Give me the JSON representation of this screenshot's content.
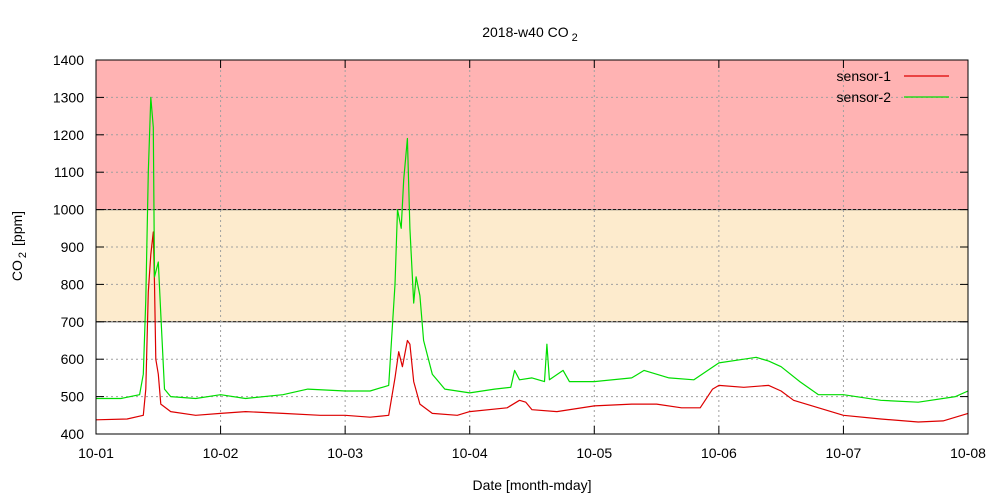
{
  "chart_data": {
    "type": "line",
    "title": "2018-w40 CO",
    "title_sub": "2",
    "xlabel": "Date [month-mday]",
    "ylabel_main": "CO",
    "ylabel_sub": "2",
    "ylabel_unit": "[ppm]",
    "xlim": [
      0,
      7
    ],
    "ylim": [
      400,
      1400
    ],
    "grid": true,
    "legend_position": "top-right",
    "x_ticks": [
      {
        "v": 0,
        "label": "10-01"
      },
      {
        "v": 1,
        "label": "10-02"
      },
      {
        "v": 2,
        "label": "10-03"
      },
      {
        "v": 3,
        "label": "10-04"
      },
      {
        "v": 4,
        "label": "10-05"
      },
      {
        "v": 5,
        "label": "10-06"
      },
      {
        "v": 6,
        "label": "10-07"
      },
      {
        "v": 7,
        "label": "10-08"
      }
    ],
    "y_ticks": [
      {
        "v": 400,
        "label": "400"
      },
      {
        "v": 500,
        "label": "500"
      },
      {
        "v": 600,
        "label": "600"
      },
      {
        "v": 700,
        "label": "700"
      },
      {
        "v": 800,
        "label": "800"
      },
      {
        "v": 900,
        "label": "900"
      },
      {
        "v": 1000,
        "label": "1000"
      },
      {
        "v": 1100,
        "label": "1100"
      },
      {
        "v": 1200,
        "label": "1200"
      },
      {
        "v": 1300,
        "label": "1300"
      },
      {
        "v": 1400,
        "label": "1400"
      }
    ],
    "bands": [
      {
        "from": 700,
        "to": 1000,
        "color": "#fdebcd"
      },
      {
        "from": 1000,
        "to": 1400,
        "color": "#ffb3b3"
      }
    ],
    "series": [
      {
        "name": "sensor-1",
        "color": "#dd0000",
        "points": [
          [
            0,
            438
          ],
          [
            0.25,
            440
          ],
          [
            0.38,
            450
          ],
          [
            0.4,
            520
          ],
          [
            0.42,
            780
          ],
          [
            0.44,
            880
          ],
          [
            0.46,
            940
          ],
          [
            0.47,
            800
          ],
          [
            0.48,
            600
          ],
          [
            0.5,
            560
          ],
          [
            0.52,
            480
          ],
          [
            0.6,
            460
          ],
          [
            0.8,
            450
          ],
          [
            1,
            455
          ],
          [
            1.2,
            460
          ],
          [
            1.5,
            455
          ],
          [
            1.8,
            450
          ],
          [
            2,
            450
          ],
          [
            2.2,
            445
          ],
          [
            2.35,
            450
          ],
          [
            2.4,
            550
          ],
          [
            2.43,
            620
          ],
          [
            2.46,
            580
          ],
          [
            2.5,
            650
          ],
          [
            2.52,
            640
          ],
          [
            2.55,
            540
          ],
          [
            2.6,
            480
          ],
          [
            2.7,
            455
          ],
          [
            2.9,
            450
          ],
          [
            3,
            460
          ],
          [
            3.3,
            470
          ],
          [
            3.4,
            490
          ],
          [
            3.45,
            485
          ],
          [
            3.5,
            465
          ],
          [
            3.7,
            460
          ],
          [
            4,
            475
          ],
          [
            4.3,
            480
          ],
          [
            4.5,
            480
          ],
          [
            4.7,
            470
          ],
          [
            4.85,
            470
          ],
          [
            4.95,
            520
          ],
          [
            5,
            530
          ],
          [
            5.2,
            525
          ],
          [
            5.4,
            530
          ],
          [
            5.5,
            515
          ],
          [
            5.6,
            490
          ],
          [
            5.8,
            470
          ],
          [
            6,
            450
          ],
          [
            6.3,
            440
          ],
          [
            6.6,
            432
          ],
          [
            6.8,
            435
          ],
          [
            7,
            455
          ]
        ]
      },
      {
        "name": "sensor-2",
        "color": "#00dd00",
        "points": [
          [
            0,
            495
          ],
          [
            0.2,
            495
          ],
          [
            0.35,
            505
          ],
          [
            0.38,
            560
          ],
          [
            0.4,
            760
          ],
          [
            0.42,
            1100
          ],
          [
            0.44,
            1300
          ],
          [
            0.46,
            1220
          ],
          [
            0.47,
            820
          ],
          [
            0.5,
            860
          ],
          [
            0.52,
            720
          ],
          [
            0.55,
            520
          ],
          [
            0.6,
            500
          ],
          [
            0.8,
            495
          ],
          [
            1,
            505
          ],
          [
            1.2,
            495
          ],
          [
            1.5,
            505
          ],
          [
            1.7,
            520
          ],
          [
            2,
            515
          ],
          [
            2.2,
            515
          ],
          [
            2.35,
            530
          ],
          [
            2.4,
            800
          ],
          [
            2.42,
            1000
          ],
          [
            2.45,
            950
          ],
          [
            2.47,
            1080
          ],
          [
            2.5,
            1190
          ],
          [
            2.52,
            950
          ],
          [
            2.55,
            750
          ],
          [
            2.57,
            820
          ],
          [
            2.6,
            770
          ],
          [
            2.63,
            650
          ],
          [
            2.7,
            560
          ],
          [
            2.8,
            520
          ],
          [
            3,
            510
          ],
          [
            3.2,
            520
          ],
          [
            3.33,
            525
          ],
          [
            3.36,
            570
          ],
          [
            3.4,
            545
          ],
          [
            3.5,
            550
          ],
          [
            3.6,
            540
          ],
          [
            3.62,
            640
          ],
          [
            3.64,
            545
          ],
          [
            3.75,
            570
          ],
          [
            3.8,
            540
          ],
          [
            4,
            540
          ],
          [
            4.3,
            550
          ],
          [
            4.4,
            570
          ],
          [
            4.6,
            550
          ],
          [
            4.8,
            545
          ],
          [
            5,
            590
          ],
          [
            5.2,
            600
          ],
          [
            5.3,
            605
          ],
          [
            5.4,
            595
          ],
          [
            5.5,
            580
          ],
          [
            5.65,
            540
          ],
          [
            5.8,
            505
          ],
          [
            6,
            505
          ],
          [
            6.3,
            490
          ],
          [
            6.6,
            485
          ],
          [
            6.9,
            500
          ],
          [
            7,
            515
          ]
        ]
      }
    ]
  }
}
